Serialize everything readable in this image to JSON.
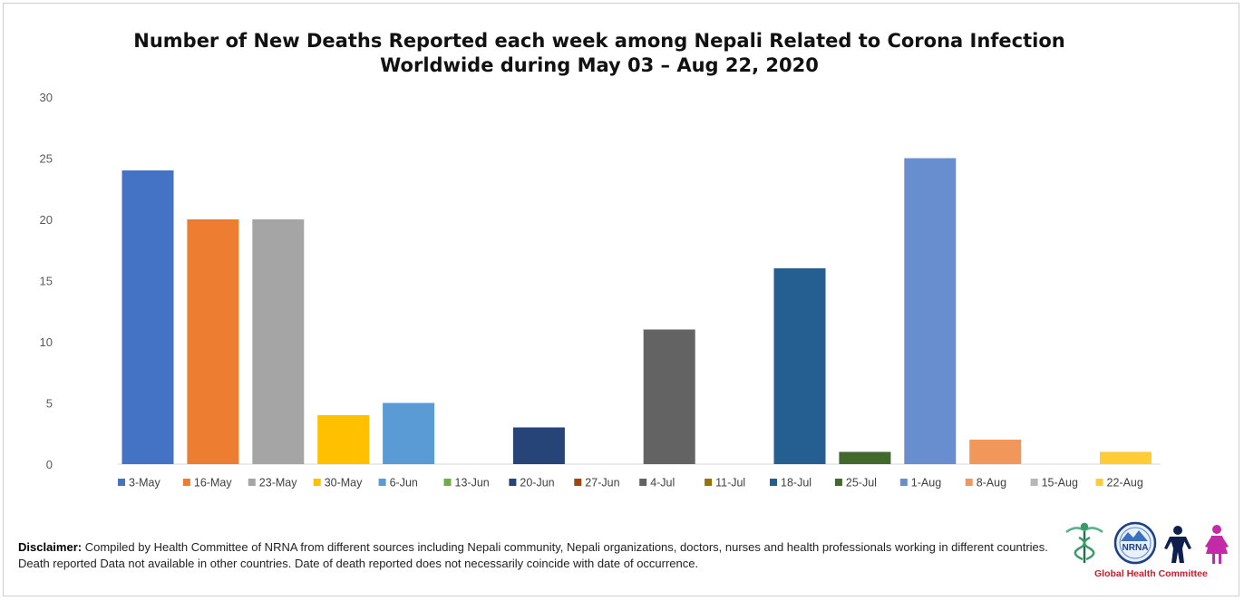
{
  "chart_data": {
    "type": "bar",
    "title_lines": [
      "Number of New Deaths Reported each week among Nepali Related to Corona Infection",
      "Worldwide during May 03 – Aug 22, 2020"
    ],
    "categories": [
      "3-May",
      "16-May",
      "23-May",
      "30-May",
      "6-Jun",
      "13-Jun",
      "20-Jun",
      "27-Jun",
      "4-Jul",
      "11-Jul",
      "18-Jul",
      "25-Jul",
      "1-Aug",
      "8-Aug",
      "15-Aug",
      "22-Aug"
    ],
    "values": [
      24,
      20,
      20,
      4,
      5,
      0,
      3,
      0,
      11,
      0,
      16,
      1,
      25,
      2,
      0,
      1
    ],
    "colors": [
      "#4472c4",
      "#ed7d31",
      "#a5a5a5",
      "#ffc000",
      "#5b9bd5",
      "#70ad47",
      "#264478",
      "#9e480e",
      "#636363",
      "#997300",
      "#255e91",
      "#43682b",
      "#698ed0",
      "#f1975a",
      "#b7b7b7",
      "#ffcd33"
    ],
    "ylim": [
      0,
      30
    ],
    "yticks": [
      0,
      5,
      10,
      15,
      20,
      25,
      30
    ],
    "grid": false,
    "legend_position": "bottom",
    "xlabel": "",
    "ylabel": ""
  },
  "disclaimer": {
    "label": "Disclaimer:",
    "text": " Compiled by Health Committee of NRNA from different sources including Nepali community,  Nepali organizations, doctors, nurses and health professionals working in different countries. Death reported  Data not available in other countries. Date of death reported does not necessarily coincide with date of occurrence."
  },
  "logo": {
    "org": "NRNA",
    "caption": "Global Health Committee",
    "icons": [
      "caduceus-icon",
      "nrna-emblem-icon",
      "male-figure-icon",
      "female-figure-icon"
    ]
  }
}
